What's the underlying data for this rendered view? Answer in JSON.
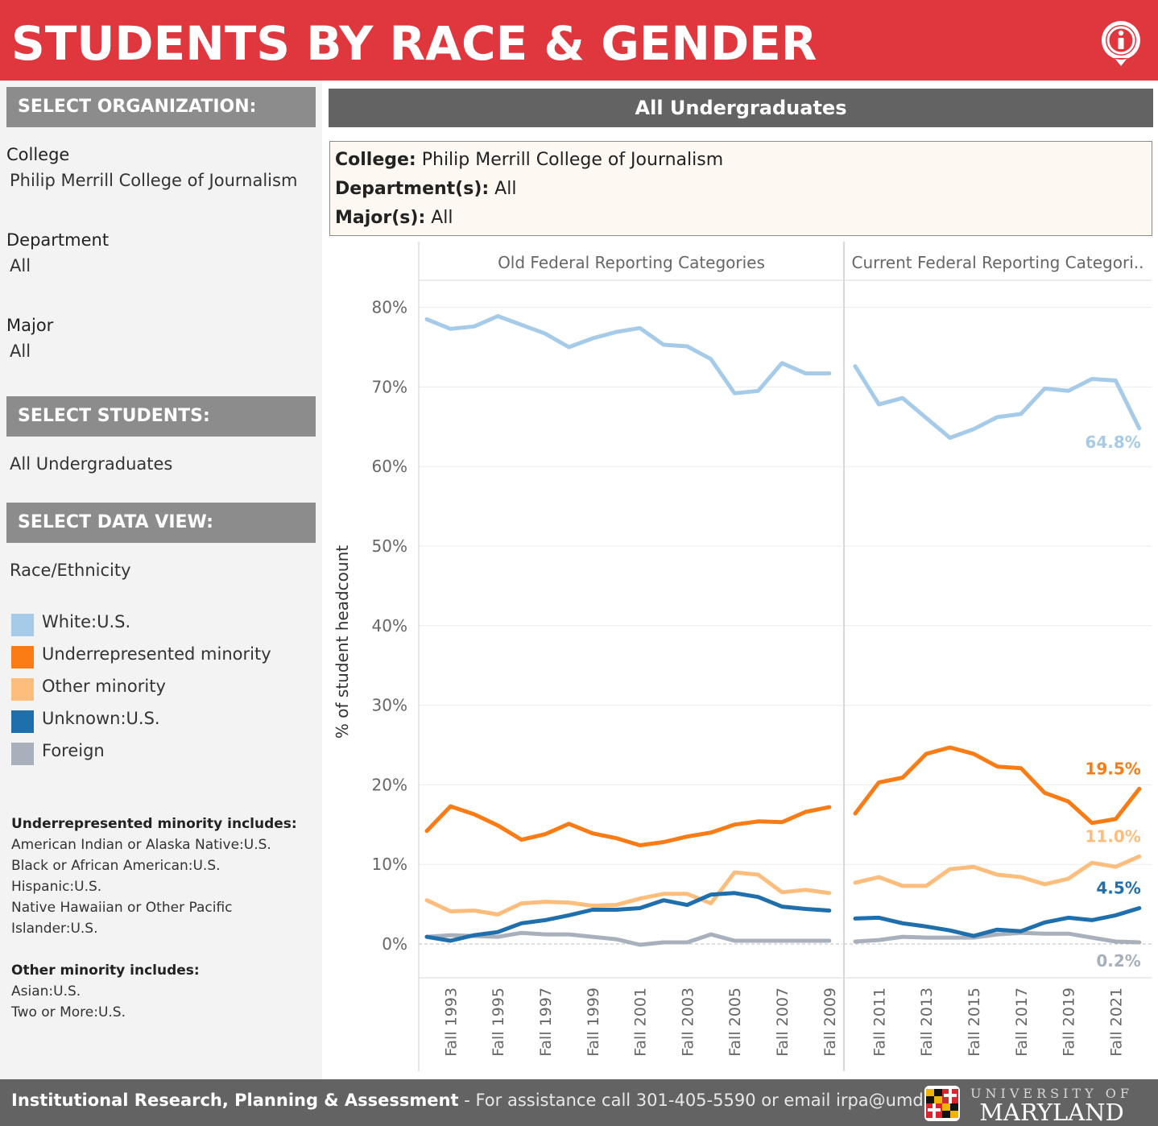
{
  "header": {
    "title": "STUDENTS BY RACE & GENDER",
    "info_icon": "info-icon"
  },
  "sidebar": {
    "select_org_heading": "SELECT ORGANIZATION:",
    "college_label": "College",
    "college_value": "Philip Merrill College of Journalism",
    "department_label": "Department",
    "department_value": "All",
    "major_label": "Major",
    "major_value": "All",
    "select_students_heading": "SELECT STUDENTS:",
    "students_value": "All Undergraduates",
    "select_view_heading": "SELECT DATA VIEW:",
    "view_value": "Race/Ethnicity",
    "legend": [
      {
        "label": "White:U.S.",
        "color": "#a6cbe8"
      },
      {
        "label": "Underrepresented minority",
        "color": "#fb7b14"
      },
      {
        "label": "Other minority",
        "color": "#fdbd7c"
      },
      {
        "label": "Unknown:U.S.",
        "color": "#1f6fad"
      },
      {
        "label": "Foreign",
        "color": "#a8b0bc"
      }
    ],
    "urm_heading": "Underrepresented minority includes:",
    "urm_lines": [
      "American Indian or Alaska Native:U.S.",
      "Black or African American:U.S.",
      "Hispanic:U.S.",
      "Native Hawaiian or Other Pacific",
      "Islander:U.S."
    ],
    "other_heading": "Other minority includes:",
    "other_lines": [
      "Asian:U.S.",
      "Two or More:U.S."
    ]
  },
  "main": {
    "title": "All Undergraduates",
    "info": {
      "college_key": "College:",
      "college_val": "Philip Merrill College of Journalism",
      "dept_key": "Department(s):",
      "dept_val": "All",
      "major_key": "Major(s):",
      "major_val": "All"
    }
  },
  "chart_data": {
    "type": "line",
    "ylabel": "% of student headcount",
    "ylim": [
      -4,
      84
    ],
    "yticks": [
      0,
      10,
      20,
      30,
      40,
      50,
      60,
      70,
      80
    ],
    "ytick_labels": [
      "0%",
      "10%",
      "20%",
      "30%",
      "40%",
      "50%",
      "60%",
      "70%",
      "80%"
    ],
    "grid": true,
    "panels": [
      {
        "title": "Old Federal Reporting Categories",
        "x": [
          1992,
          1993,
          1994,
          1995,
          1996,
          1997,
          1998,
          1999,
          2000,
          2001,
          2002,
          2003,
          2004,
          2005,
          2006,
          2007,
          2008,
          2009
        ],
        "tick_labels": [
          "Fall 1993",
          "Fall 1995",
          "Fall 1997",
          "Fall 1999",
          "Fall 2001",
          "Fall 2003",
          "Fall 2005",
          "Fall 2007",
          "Fall 2009"
        ],
        "tick_years": [
          1993,
          1995,
          1997,
          1999,
          2001,
          2003,
          2005,
          2007,
          2009
        ],
        "series": [
          {
            "name": "White:U.S.",
            "color": "#a6cbe8",
            "values": [
              78.5,
              77.3,
              77.6,
              78.9,
              77.8,
              76.7,
              75.0,
              76.1,
              76.9,
              77.4,
              75.3,
              75.1,
              73.5,
              69.2,
              69.5,
              73.0,
              71.7,
              71.7
            ]
          },
          {
            "name": "Underrepresented minority",
            "color": "#fb7b14",
            "values": [
              14.2,
              17.3,
              16.3,
              14.9,
              13.1,
              13.8,
              15.1,
              13.9,
              13.3,
              12.4,
              12.8,
              13.5,
              14.0,
              15.0,
              15.4,
              15.3,
              16.6,
              17.2
            ]
          },
          {
            "name": "Other minority",
            "color": "#fdbd7c",
            "values": [
              5.5,
              4.1,
              4.2,
              3.7,
              5.1,
              5.3,
              5.2,
              4.8,
              4.9,
              5.7,
              6.3,
              6.3,
              5.1,
              9.0,
              8.7,
              6.5,
              6.8,
              6.4
            ]
          },
          {
            "name": "Unknown:U.S.",
            "color": "#1f6fad",
            "values": [
              0.9,
              0.4,
              1.1,
              1.5,
              2.6,
              3.0,
              3.6,
              4.3,
              4.3,
              4.5,
              5.5,
              4.9,
              6.2,
              6.4,
              5.9,
              4.7,
              4.4,
              4.2
            ]
          },
          {
            "name": "Foreign",
            "color": "#a8b0bc",
            "values": [
              0.9,
              1.1,
              1.0,
              0.9,
              1.4,
              1.2,
              1.2,
              0.9,
              0.6,
              -0.1,
              0.2,
              0.2,
              1.2,
              0.4,
              0.4,
              0.4,
              0.4,
              0.4
            ]
          }
        ]
      },
      {
        "title": "Current Federal Reporting Categori..",
        "x": [
          2010,
          2011,
          2012,
          2013,
          2014,
          2015,
          2016,
          2017,
          2018,
          2019,
          2020,
          2021,
          2022
        ],
        "tick_labels": [
          "Fall 2011",
          "Fall 2013",
          "Fall 2015",
          "Fall 2017",
          "Fall 2019",
          "Fall 2021"
        ],
        "tick_years": [
          2011,
          2013,
          2015,
          2017,
          2019,
          2021
        ],
        "series": [
          {
            "name": "White:U.S.",
            "color": "#a6cbe8",
            "values": [
              72.6,
              67.8,
              68.6,
              66.1,
              63.6,
              64.7,
              66.2,
              66.6,
              69.8,
              69.5,
              71.0,
              70.8,
              64.8
            ],
            "end_label": "64.8%"
          },
          {
            "name": "Underrepresented minority",
            "color": "#fb7b14",
            "values": [
              16.4,
              20.3,
              20.9,
              23.9,
              24.7,
              23.9,
              22.3,
              22.1,
              19.0,
              17.9,
              15.2,
              15.7,
              19.5
            ],
            "end_label": "19.5%"
          },
          {
            "name": "Other minority",
            "color": "#fdbd7c",
            "values": [
              7.7,
              8.4,
              7.3,
              7.3,
              9.4,
              9.7,
              8.7,
              8.4,
              7.5,
              8.2,
              10.2,
              9.7,
              11.0
            ],
            "end_label": "11.0%"
          },
          {
            "name": "Unknown:U.S.",
            "color": "#1f6fad",
            "values": [
              3.2,
              3.3,
              2.6,
              2.2,
              1.7,
              1.0,
              1.8,
              1.6,
              2.7,
              3.3,
              3.0,
              3.6,
              4.5
            ],
            "end_label": "4.5%"
          },
          {
            "name": "Foreign",
            "color": "#a8b0bc",
            "values": [
              0.3,
              0.5,
              0.9,
              0.8,
              0.8,
              0.8,
              1.2,
              1.4,
              1.3,
              1.3,
              0.8,
              0.3,
              0.2
            ],
            "end_label": "0.2%"
          }
        ]
      }
    ]
  },
  "footer": {
    "org": "Institutional Research, Planning & Assessment",
    "contact": " - For assistance call 301-405-5590 or email irpa@umd.edu",
    "logo_top": "UNIVERSITY OF",
    "logo_bottom": "MARYLAND"
  }
}
